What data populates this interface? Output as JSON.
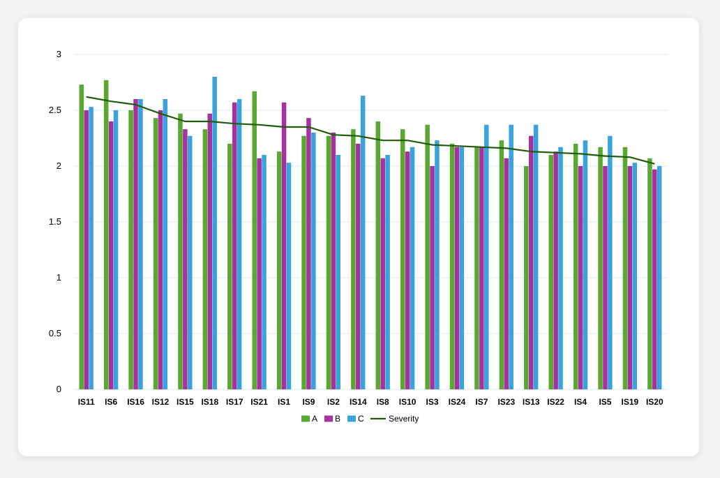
{
  "chart_data": {
    "type": "bar",
    "title": "",
    "xlabel": "",
    "ylabel": "",
    "ylim": [
      0,
      3
    ],
    "yticks": [
      "0",
      "0.5",
      "1",
      "1.5",
      "2",
      "2.5",
      "3"
    ],
    "grid": true,
    "legend_position": "bottom",
    "categories": [
      "IS11",
      "IS6",
      "IS16",
      "IS12",
      "IS15",
      "IS18",
      "IS17",
      "IS21",
      "IS1",
      "IS9",
      "IS2",
      "IS14",
      "IS8",
      "IS10",
      "IS3",
      "IS24",
      "IS7",
      "IS23",
      "IS13",
      "IS22",
      "IS4",
      "IS5",
      "IS19",
      "IS20"
    ],
    "series": [
      {
        "name": "A",
        "kind": "bar",
        "color": "#5aa832",
        "values": [
          2.73,
          2.77,
          2.5,
          2.43,
          2.47,
          2.33,
          2.2,
          2.67,
          2.13,
          2.27,
          2.27,
          2.33,
          2.4,
          2.33,
          2.37,
          2.2,
          2.17,
          2.23,
          2.0,
          2.1,
          2.2,
          2.17,
          2.17,
          2.07
        ]
      },
      {
        "name": "B",
        "kind": "bar",
        "color": "#a5329e",
        "values": [
          2.5,
          2.4,
          2.6,
          2.5,
          2.33,
          2.47,
          2.57,
          2.07,
          2.57,
          2.43,
          2.3,
          2.2,
          2.07,
          2.13,
          2.0,
          2.17,
          2.17,
          2.07,
          2.27,
          2.13,
          2.0,
          2.0,
          2.0,
          1.97
        ]
      },
      {
        "name": "C",
        "kind": "bar",
        "color": "#3aa2dc",
        "values": [
          2.53,
          2.5,
          2.6,
          2.6,
          2.27,
          2.8,
          2.6,
          2.1,
          2.03,
          2.3,
          2.1,
          2.63,
          2.1,
          2.17,
          2.23,
          2.17,
          2.37,
          2.37,
          2.37,
          2.17,
          2.23,
          2.27,
          2.03,
          2.0
        ]
      },
      {
        "name": "Severity",
        "kind": "line",
        "color": "#1f5c0a",
        "values": [
          2.62,
          2.58,
          2.55,
          2.47,
          2.4,
          2.4,
          2.38,
          2.37,
          2.35,
          2.35,
          2.28,
          2.27,
          2.23,
          2.23,
          2.19,
          2.18,
          2.17,
          2.16,
          2.13,
          2.12,
          2.11,
          2.09,
          2.08,
          2.02
        ]
      }
    ]
  }
}
